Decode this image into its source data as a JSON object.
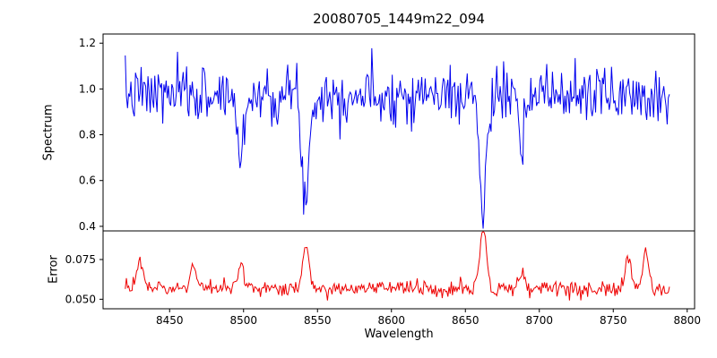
{
  "chart_data": {
    "type": "line",
    "title": "20080705_1449m22_094",
    "xlabel": "Wavelength",
    "xlim": [
      8405,
      8805
    ],
    "xticks": [
      8450,
      8500,
      8550,
      8600,
      8650,
      8700,
      8750,
      8800
    ],
    "xtick_labels": [
      "8450",
      "8500",
      "8550",
      "8600",
      "8650",
      "8700",
      "8750",
      "8800"
    ],
    "x_range_data": [
      8420,
      8788
    ],
    "n_points": 480,
    "panels": [
      {
        "name": "spectrum",
        "ylabel": "Spectrum",
        "ylim": [
          0.38,
          1.24
        ],
        "yticks": [
          0.4,
          0.6,
          0.8,
          1.0,
          1.2
        ],
        "ytick_labels": [
          "0.4",
          "0.6",
          "0.8",
          "1.0",
          "1.2"
        ],
        "color": "#0000ee",
        "model": {
          "continuum": 0.975,
          "noise_sigma": 0.062,
          "seed": 7,
          "clip": [
            0.39,
            1.225
          ],
          "absorption_features": [
            {
              "center": 8498,
              "depth": 0.3,
              "width": 2.0
            },
            {
              "center": 8542,
              "depth": 0.48,
              "width": 2.2
            },
            {
              "center": 8662,
              "depth": 0.56,
              "width": 2.2
            },
            {
              "center": 8688,
              "depth": 0.33,
              "width": 1.8
            }
          ]
        }
      },
      {
        "name": "error",
        "ylabel": "Error",
        "ylim": [
          0.044,
          0.093
        ],
        "yticks": [
          0.05,
          0.075
        ],
        "ytick_labels": [
          "0.050",
          "0.075"
        ],
        "color": "#ee0000",
        "model": {
          "baseline": 0.0555,
          "noise_sigma": 0.0024,
          "seed": 13,
          "clip": [
            0.047,
            0.0925
          ],
          "emission_features": [
            {
              "center": 8430,
              "height": 0.018,
              "width": 2.0
            },
            {
              "center": 8466,
              "height": 0.013,
              "width": 2.0
            },
            {
              "center": 8498,
              "height": 0.016,
              "width": 2.0
            },
            {
              "center": 8542,
              "height": 0.028,
              "width": 2.2
            },
            {
              "center": 8662,
              "height": 0.036,
              "width": 2.2
            },
            {
              "center": 8688,
              "height": 0.01,
              "width": 2.0
            },
            {
              "center": 8760,
              "height": 0.02,
              "width": 2.0
            },
            {
              "center": 8772,
              "height": 0.024,
              "width": 2.0
            }
          ]
        }
      }
    ],
    "frame_color": "#000000",
    "background_color": "#ffffff",
    "grid": false,
    "legend": "none"
  }
}
